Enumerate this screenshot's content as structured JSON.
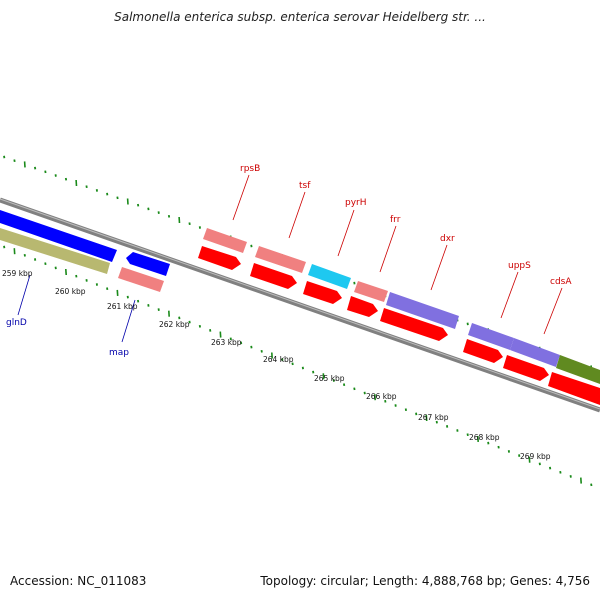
{
  "title": "Salmonella enterica subsp. enterica serovar Heidelberg str. ...",
  "footer": {
    "accession": "Accession: NC_011083",
    "summary": "Topology: circular; Length: 4,888,768 bp; Genes: 4,756"
  },
  "colors": {
    "background": "#ffffff",
    "backbone": "#808080",
    "tick_green": "#1a8a1a",
    "cds_red": "#ff0000",
    "cds_pink": "#f08080",
    "cds_blue": "#0000ff",
    "cds_cyan": "#1ec8f0",
    "cds_purple": "#8070e0",
    "cds_olive": "#b8b870",
    "cds_green": "#608a20",
    "label_red": "#cc0000",
    "label_blue": "#0000aa"
  },
  "scale_labels": [
    "259 kbp",
    "260 kbp",
    "261 kbp",
    "262 kbp",
    "263 kbp",
    "264 kbp",
    "265 kbp",
    "266 kbp",
    "267 kbp",
    "268 kbp",
    "269 kbp"
  ],
  "gene_labels": [
    {
      "name": "glnD",
      "color": "#0000aa"
    },
    {
      "name": "map",
      "color": "#0000aa"
    },
    {
      "name": "rpsB",
      "color": "#cc0000"
    },
    {
      "name": "tsf",
      "color": "#cc0000"
    },
    {
      "name": "pyrH",
      "color": "#cc0000"
    },
    {
      "name": "frr",
      "color": "#cc0000"
    },
    {
      "name": "dxr",
      "color": "#cc0000"
    },
    {
      "name": "uppS",
      "color": "#cc0000"
    },
    {
      "name": "cdsA",
      "color": "#cc0000"
    }
  ]
}
